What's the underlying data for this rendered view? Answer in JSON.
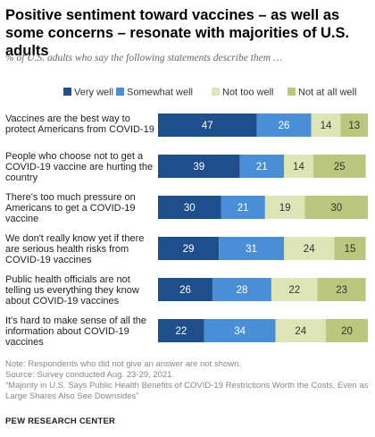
{
  "header": {
    "title": "Positive sentiment toward vaccines – as well as some concerns – resonate with majorities of U.S. adults",
    "subtitle": "% of U.S. adults who say the following statements describe them …"
  },
  "chart_data": {
    "type": "bar",
    "orientation": "horizontal",
    "stacked": true,
    "categories": [
      [
        "Vaccines are the best way to",
        "protect Americans from COVID-19"
      ],
      [
        "People who choose not to get a",
        "COVID-19 vaccine are hurting the",
        "country"
      ],
      [
        "There's too much pressure on",
        "Americans to get a COVID-19",
        "vaccine"
      ],
      [
        "We don't really know yet if there",
        "are serious health risks from",
        "COVID-19 vaccines"
      ],
      [
        "Public health officials are not",
        "telling us everything they know",
        "about COVID-19 vaccines"
      ],
      [
        "It's hard to make sense of all the",
        "information about COVID-19",
        "vaccines"
      ]
    ],
    "series": [
      {
        "name": "Very well",
        "color": "#1f4e8c",
        "values": [
          47,
          39,
          30,
          29,
          26,
          22
        ]
      },
      {
        "name": "Somewhat well",
        "color": "#4a8fd6",
        "values": [
          26,
          21,
          21,
          31,
          28,
          34
        ]
      },
      {
        "name": "Not too well",
        "color": "#dde4b6",
        "values": [
          14,
          14,
          19,
          24,
          22,
          24
        ]
      },
      {
        "name": "Not at all well",
        "color": "#b9c77f",
        "values": [
          13,
          25,
          30,
          15,
          23,
          20
        ]
      }
    ],
    "label_colors": [
      "#ffffff",
      "#ffffff",
      "#333333",
      "#333333"
    ],
    "legend_position": "top",
    "xlim": [
      0,
      100
    ],
    "grid": false
  },
  "footer": {
    "note": "Note: Respondents who did not give an answer are not shown.",
    "source": "Source: Survey conducted Aug. 23-29, 2021.",
    "report": "“Majority in U.S. Says Public Health Benefits of COVID-19 Restrictions Worth the Costs, Even as Large Shares Also See Downsides”",
    "brand": "PEW RESEARCH CENTER"
  }
}
